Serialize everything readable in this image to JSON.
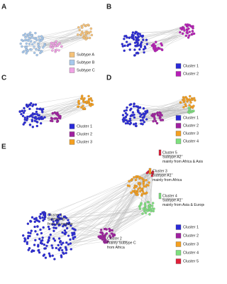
{
  "panels": [
    {
      "label": "A",
      "legend": [
        {
          "name": "Subtype A",
          "color": "#f5c27a"
        },
        {
          "name": "Subtype B",
          "color": "#a7c8ec"
        },
        {
          "name": "Subtype C",
          "color": "#f0a3e4"
        }
      ]
    },
    {
      "label": "B",
      "legend": [
        {
          "name": "Cluster 1",
          "color": "#2a2ad8"
        },
        {
          "name": "Cluster 2",
          "color": "#b81fb8"
        }
      ]
    },
    {
      "label": "C",
      "legend": [
        {
          "name": "Cluster 1",
          "color": "#2a2ad8"
        },
        {
          "name": "Cluster 2",
          "color": "#a020a0"
        },
        {
          "name": "Cluster 3",
          "color": "#f5a020"
        }
      ]
    },
    {
      "label": "D",
      "legend": [
        {
          "name": "Cluster 1",
          "color": "#2a2ad8"
        },
        {
          "name": "Cluster 2",
          "color": "#a020a0"
        },
        {
          "name": "Cluster 3",
          "color": "#f5a020"
        },
        {
          "name": "Cluster 4",
          "color": "#7ee07e"
        }
      ]
    },
    {
      "label": "E",
      "legend": [
        {
          "name": "Cluster 1",
          "color": "#2a2ad8"
        },
        {
          "name": "Cluster 2",
          "color": "#a020a0"
        },
        {
          "name": "Cluster 3",
          "color": "#f5a020"
        },
        {
          "name": "Cluster 4",
          "color": "#7ee07e"
        },
        {
          "name": "Cluster 5",
          "color": "#e0203a"
        }
      ],
      "annotations": [
        {
          "lines": [
            "Cluster 1",
            "Subtype B",
            "from all regions"
          ],
          "color": "#2a2ad8"
        },
        {
          "lines": [
            "Cluster 2",
            "mainly Subtype C",
            "from Africa"
          ],
          "color": "#a020a0"
        },
        {
          "lines": [
            "Cluster 3",
            "Subtype A1",
            "mainly from Africa"
          ],
          "color": "#f5a020"
        },
        {
          "lines": [
            "Cluster 4",
            "Subtype A1",
            "mainly from Asia & Europe"
          ],
          "color": "#7ee07e"
        },
        {
          "lines": [
            "Cluster 5",
            "Subtype A2",
            "mainly from Africa & Asis"
          ],
          "color": "#e0203a"
        }
      ]
    }
  ]
}
